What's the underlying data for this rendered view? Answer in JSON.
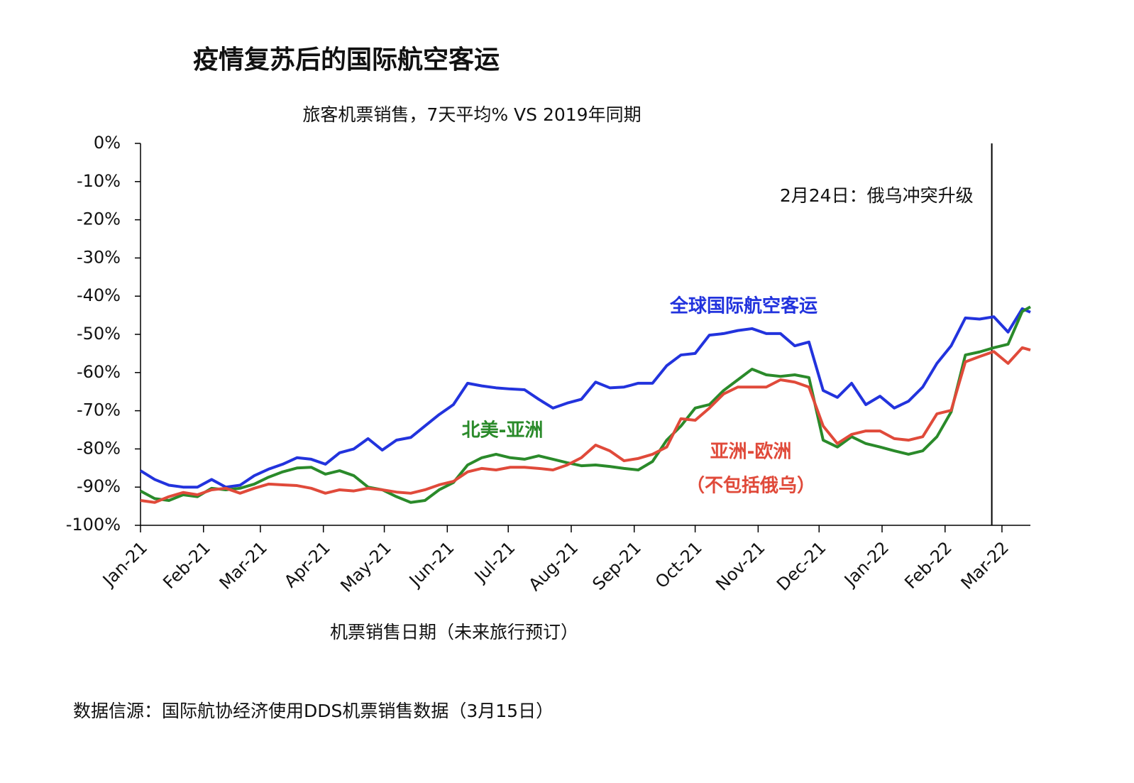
{
  "chart_data": {
    "type": "line",
    "title": "疫情复苏后的国际航空客运",
    "subtitle": "旅客机票销售，7天平均% VS 2019年同期",
    "x_label": "机票销售日期（未来旅行预订）",
    "source": "数据信源：国际航协经济使用DDS机票销售数据（3月15日）",
    "annotation": {
      "text": "2月24日：俄乌冲突升级",
      "x": 419
    },
    "x": [
      0,
      7,
      14,
      21,
      28,
      35,
      42,
      49,
      56,
      63,
      70,
      77,
      84,
      91,
      98,
      105,
      112,
      119,
      126,
      133,
      140,
      147,
      154,
      161,
      168,
      175,
      182,
      189,
      196,
      203,
      210,
      217,
      224,
      231,
      238,
      245,
      252,
      259,
      266,
      273,
      280,
      287,
      294,
      301,
      308,
      315,
      322,
      329,
      336,
      343,
      350,
      357,
      364,
      371,
      378,
      385,
      392,
      399,
      406,
      413,
      420,
      427,
      434,
      438
    ],
    "xlim": [
      0,
      438
    ],
    "xticks": [
      {
        "value": 0,
        "label": "Jan-21"
      },
      {
        "value": 31,
        "label": "Feb-21"
      },
      {
        "value": 59,
        "label": "Mar-21"
      },
      {
        "value": 90,
        "label": "Apr-21"
      },
      {
        "value": 120,
        "label": "May-21"
      },
      {
        "value": 151,
        "label": "Jun-21"
      },
      {
        "value": 181,
        "label": "Jul-21"
      },
      {
        "value": 212,
        "label": "Aug-21"
      },
      {
        "value": 243,
        "label": "Sep-21"
      },
      {
        "value": 273,
        "label": "Oct-21"
      },
      {
        "value": 304,
        "label": "Nov-21"
      },
      {
        "value": 334,
        "label": "Dec-21"
      },
      {
        "value": 365,
        "label": "Jan-22"
      },
      {
        "value": 396,
        "label": "Feb-22"
      },
      {
        "value": 424,
        "label": "Mar-22"
      }
    ],
    "ylim": [
      -100,
      0
    ],
    "yticks": [
      {
        "value": 0,
        "label": "0%"
      },
      {
        "value": -10,
        "label": "-10%"
      },
      {
        "value": -20,
        "label": "-20%"
      },
      {
        "value": -30,
        "label": "-30%"
      },
      {
        "value": -40,
        "label": "-40%"
      },
      {
        "value": -50,
        "label": "-50%"
      },
      {
        "value": -60,
        "label": "-60%"
      },
      {
        "value": -70,
        "label": "-70%"
      },
      {
        "value": -80,
        "label": "-80%"
      },
      {
        "value": -90,
        "label": "-90%"
      },
      {
        "value": -100,
        "label": "-100%"
      }
    ],
    "series": [
      {
        "name": "全球国际航空客运",
        "color": "#2233dd",
        "values": [
          -85.7,
          -88,
          -89.5,
          -90,
          -90,
          -88,
          -90,
          -89.5,
          -87,
          -85.3,
          -84,
          -82.3,
          -82.7,
          -84,
          -81,
          -80,
          -77.3,
          -80.3,
          -77.7,
          -77,
          -74,
          -71,
          -68.4,
          -62.8,
          -63.5,
          -64,
          -64.3,
          -64.5,
          -67,
          -69.3,
          -68,
          -67,
          -62.5,
          -64,
          -63.8,
          -62.8,
          -62.8,
          -58.2,
          -55.4,
          -55,
          -50.2,
          -49.8,
          -49,
          -48.5,
          -49.8,
          -49.8,
          -53,
          -52,
          -64.7,
          -66.5,
          -62.8,
          -68.4,
          -66.2,
          -69.3,
          -67.5,
          -63.8,
          -57.6,
          -53,
          -45.7,
          -46,
          -45.4,
          -49.4,
          -43.3,
          -44.2
        ]
      },
      {
        "name": "北美-亚洲",
        "color": "#2a8a2a",
        "values": [
          -91,
          -93,
          -93.5,
          -92,
          -92.5,
          -90.3,
          -90.7,
          -90.3,
          -89.2,
          -87.4,
          -86,
          -85,
          -84.8,
          -86.6,
          -85.7,
          -87,
          -90,
          -90.7,
          -92.5,
          -94,
          -93.5,
          -90.7,
          -88.8,
          -84.2,
          -82.3,
          -81.4,
          -82.3,
          -82.7,
          -81.8,
          -82.7,
          -83.6,
          -84.4,
          -84.2,
          -84.6,
          -85.1,
          -85.5,
          -83.3,
          -77.7,
          -74,
          -69.3,
          -68.4,
          -64.7,
          -61.9,
          -59.1,
          -60.6,
          -61,
          -60.6,
          -61.3,
          -77.7,
          -79.5,
          -76.8,
          -78.6,
          -79.5,
          -80.5,
          -81.4,
          -80.5,
          -76.8,
          -70.3,
          -55.4,
          -54.6,
          -53.5,
          -52.6,
          -44,
          -42.8
        ]
      },
      {
        "name": "亚洲-欧洲",
        "note": "（不包括俄乌）",
        "color": "#e04a3a",
        "values": [
          -93.5,
          -94,
          -92.5,
          -91.4,
          -92,
          -90.7,
          -90.3,
          -91.6,
          -90.3,
          -89.2,
          -89.4,
          -89.6,
          -90.3,
          -91.6,
          -90.7,
          -91,
          -90.3,
          -90.7,
          -91.3,
          -91.6,
          -90.7,
          -89.4,
          -88.5,
          -86,
          -85.1,
          -85.5,
          -84.8,
          -84.8,
          -85.1,
          -85.5,
          -84.2,
          -82.3,
          -79,
          -80.5,
          -83.1,
          -82.5,
          -81.4,
          -79.5,
          -72.1,
          -72.5,
          -69.3,
          -65.6,
          -63.8,
          -63.8,
          -63.8,
          -61.9,
          -62.5,
          -63.8,
          -74,
          -78.6,
          -76.2,
          -75.3,
          -75.3,
          -77.3,
          -77.7,
          -76.8,
          -70.8,
          -69.9,
          -57.2,
          -55.8,
          -54.5,
          -57.6,
          -53.5,
          -54.1
        ]
      }
    ]
  }
}
